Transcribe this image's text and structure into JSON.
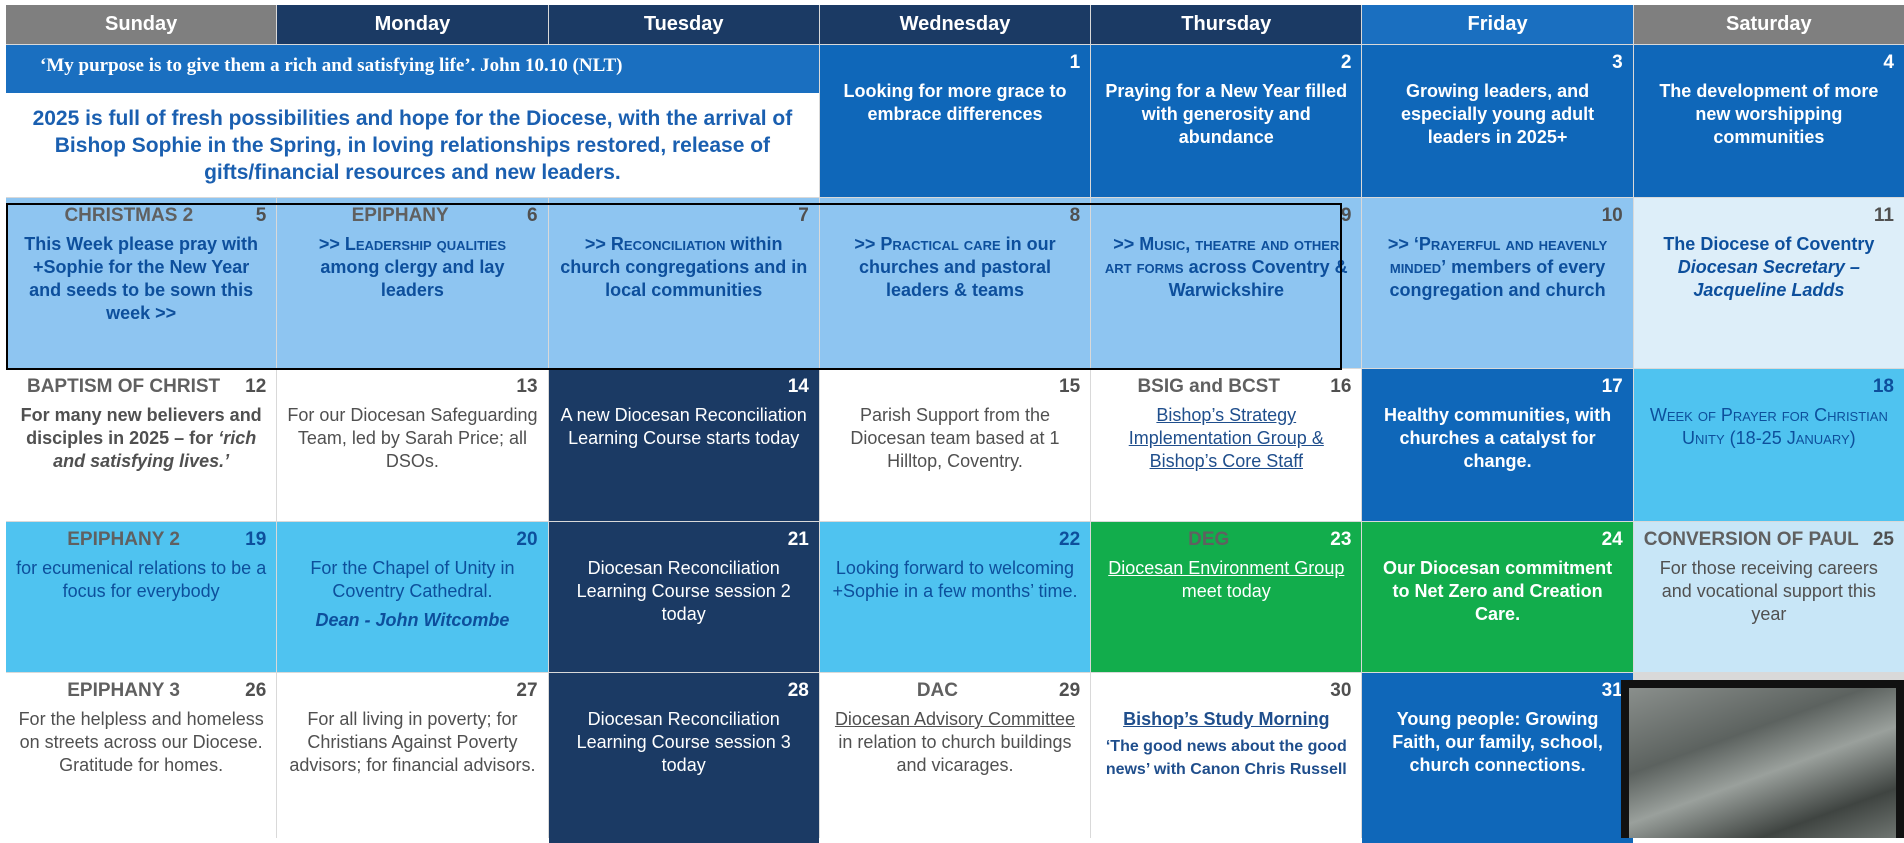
{
  "header": {
    "days": [
      "Sunday",
      "Monday",
      "Tuesday",
      "Wednesday",
      "Thursday",
      "Friday",
      "Saturday"
    ]
  },
  "banner": {
    "quote": "‘My purpose is to give them a rich and satisfying life’.  John 10.10 (NLT)",
    "text": "2025 is full of fresh possibilities and hope for the Diocese, with the arrival of Bishop Sophie in the Spring, in loving relationships restored, release of gifts/financial resources and new leaders."
  },
  "cells": [
    {
      "day": 1,
      "text": "Looking for more grace to embrace differences"
    },
    {
      "day": 2,
      "text": "Praying for a New Year filled with generosity and abundance"
    },
    {
      "day": 3,
      "text": "Growing leaders, and especially young adult leaders in 2025+"
    },
    {
      "day": 4,
      "text": "The development of more new worshipping communities"
    },
    {
      "label": "CHRISTMAS 2",
      "day": 5,
      "text": "This Week please pray with +Sophie for the New Year and seeds to be sown this week >>"
    },
    {
      "label": "EPIPHANY",
      "day": 6,
      "sc": ">> Leadership qualities",
      "text": "among clergy and lay leaders"
    },
    {
      "day": 7,
      "sc": ">> Reconciliation",
      "text": "within church congregations and in local communities"
    },
    {
      "day": 8,
      "sc": ">> Practical care",
      "text": "in our churches and pastoral leaders & teams"
    },
    {
      "day": 9,
      "sc": ">> Music, theatre and other art forms",
      "text": "across Coventry & Warwickshire"
    },
    {
      "day": 10,
      "sc": ">> ‘Prayerful and heavenly minded’",
      "text": "members of every congregation and church"
    },
    {
      "day": 11,
      "title": "The Diocese of Coventry",
      "em": "Diocesan Secretary – Jacqueline Ladds"
    },
    {
      "label": "BAPTISM OF CHRIST",
      "day": 12,
      "text": "For many new believers and disciples in 2025 – for",
      "em": "‘rich and satisfying lives.’"
    },
    {
      "day": 13,
      "text": "For our Diocesan Safeguarding Team, led by Sarah Price; all DSOs."
    },
    {
      "day": 14,
      "text": "A new Diocesan Reconciliation Learning Course starts today"
    },
    {
      "day": 15,
      "text": "Parish Support from the Diocesan team based at 1 Hilltop, Coventry."
    },
    {
      "label": "BSIG and BCST",
      "day": 16,
      "link": "Bishop’s Strategy Implementation Group & Bishop’s Core Staff"
    },
    {
      "day": 17,
      "text": "Healthy communities, with churches a catalyst for change."
    },
    {
      "day": 18,
      "sc": "Week of Prayer for Christian Unity",
      "text": "(18-25 January)"
    },
    {
      "label": "EPIPHANY 2",
      "day": 19,
      "text": "for ecumenical relations to be a focus for everybody"
    },
    {
      "day": 20,
      "text": "For the Chapel of Unity in Coventry Cathedral.",
      "em": "Dean - John Witcombe"
    },
    {
      "day": 21,
      "text": "Diocesan Reconciliation Learning Course session 2 today"
    },
    {
      "day": 22,
      "text": "Looking forward to welcoming +Sophie in a few months’ time."
    },
    {
      "label": "DEG",
      "day": 23,
      "link": "Diocesan Environment Group",
      "text": "meet today"
    },
    {
      "day": 24,
      "text": "Our Diocesan commitment to Net Zero and Creation Care."
    },
    {
      "label": "CONVERSION OF PAUL",
      "day": 25,
      "text": "For those receiving careers and vocational support this year"
    },
    {
      "label": "EPIPHANY 3",
      "day": 26,
      "text": "For the helpless and homeless on streets across our Diocese. Gratitude for homes."
    },
    {
      "day": 27,
      "text": "For all living in poverty; for Christians Against Poverty advisors; for financial advisors."
    },
    {
      "day": 28,
      "text": "Diocesan Reconciliation Learning Course session 3 today"
    },
    {
      "label": "DAC",
      "day": 29,
      "link": "Diocesan Advisory Committee",
      "text": "in relation to church buildings and vicarages."
    },
    {
      "day": 30,
      "link": "Bishop’s Study Morning",
      "text": "‘The good news about the good news’ with Canon Chris Russell"
    },
    {
      "day": 31,
      "text": "Young people: Growing Faith, our family, school, church connections."
    }
  ]
}
